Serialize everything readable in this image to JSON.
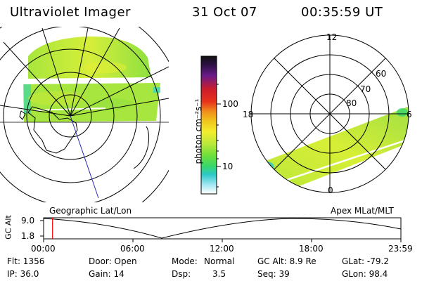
{
  "header": {
    "title": "Ultraviolet Imager",
    "date": "31 Oct 07",
    "time": "00:35:59 UT"
  },
  "left_panel": {
    "label": "Geographic Lat/Lon"
  },
  "right_panel": {
    "label": "Apex MLat/MLT",
    "mlt_labels": {
      "top": "12",
      "left": "18",
      "right": "6",
      "bottom": "0"
    },
    "lat_labels": [
      "60",
      "70",
      "80"
    ]
  },
  "colorbar": {
    "unit_label": "photon cm⁻²s⁻¹",
    "tick_labels": [
      "100",
      "10"
    ],
    "colors": [
      "#111111",
      "#2a1040",
      "#6a1a8a",
      "#cc1c2c",
      "#e8321a",
      "#f08c1c",
      "#f0c41c",
      "#f2ee2e",
      "#b8e83a",
      "#6ee03a",
      "#38d66a",
      "#2cc8c8",
      "#9ee6f2",
      "#ffffff"
    ]
  },
  "altitude_plot": {
    "ylabel": "GC Alt",
    "ytick_high": "9.0",
    "ytick_low": "1.8",
    "xtick_labels": [
      "00:00",
      "06:00",
      "12:00",
      "18:00",
      "23:59"
    ],
    "marker_time_fraction": 0.025,
    "marker_color": "#ff0000"
  },
  "info": {
    "flt": "Flt: 1356",
    "ip": "IP: 36.0",
    "door": "Door: Open",
    "gain": "Gain: 14",
    "mode_label": "Mode:",
    "mode_value": "Normal",
    "dsp_label": "Dsp:",
    "dsp_value": "3.5",
    "gc_alt": "GC Alt: 8.9 Re",
    "seq": "Seq: 39",
    "glat": "GLat: -79.2",
    "glon": "GLon: 98.4"
  }
}
